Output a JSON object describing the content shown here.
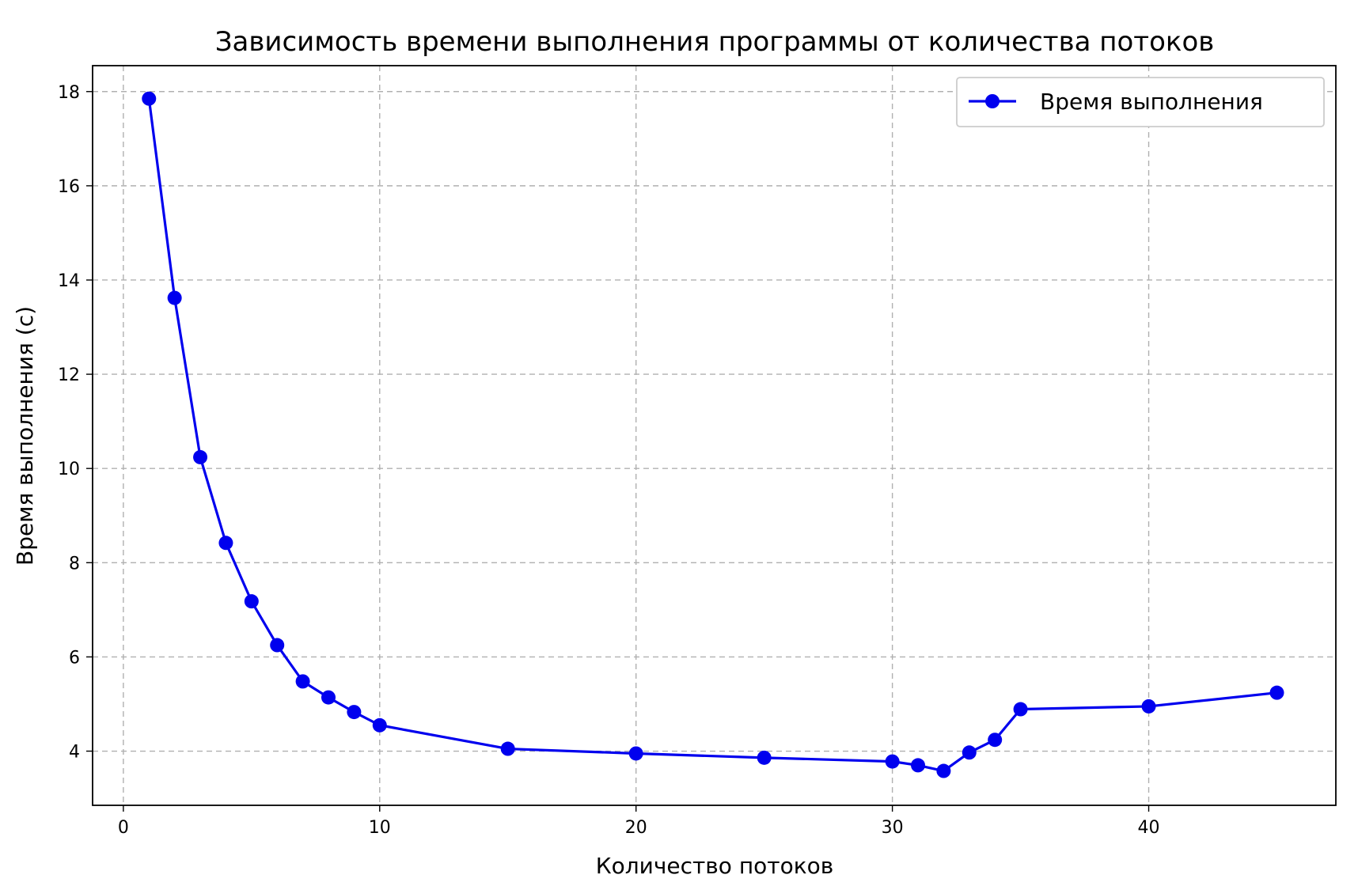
{
  "chart_data": {
    "type": "line",
    "title": "Зависимость времени выполнения программы от количества потоков",
    "xlabel": "Количество потоков",
    "ylabel": "Время выполнения (с)",
    "xlim": [
      -1.2,
      47.3
    ],
    "ylim": [
      2.85,
      18.55
    ],
    "x_ticks": [
      0,
      10,
      20,
      30,
      40
    ],
    "y_ticks": [
      4,
      6,
      8,
      10,
      12,
      14,
      16,
      18
    ],
    "grid": true,
    "legend": {
      "position": "top-right",
      "entries": [
        "Время выполнения"
      ]
    },
    "series": [
      {
        "name": "Время выполнения",
        "color": "#0000ee",
        "marker": "circle",
        "x": [
          1,
          2,
          3,
          4,
          5,
          6,
          7,
          8,
          9,
          10,
          15,
          20,
          25,
          30,
          31,
          32,
          33,
          34,
          35,
          40,
          45
        ],
        "values": [
          17.85,
          13.62,
          10.24,
          8.42,
          7.18,
          6.25,
          5.48,
          5.14,
          4.83,
          4.55,
          4.05,
          3.95,
          3.86,
          3.78,
          3.7,
          3.58,
          3.97,
          4.24,
          4.89,
          4.95,
          5.24
        ]
      }
    ]
  }
}
